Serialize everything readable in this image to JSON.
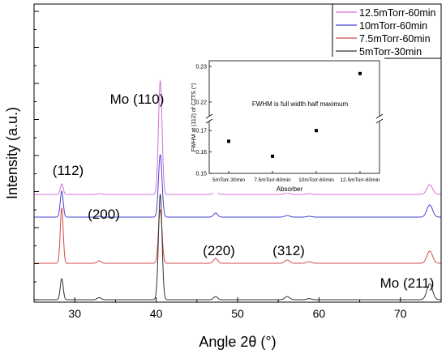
{
  "chart_data": [
    {
      "type": "line",
      "xlabel": "Angle 2θ (°)",
      "ylabel": "Intensity (a.u.)",
      "xlim": [
        25,
        75
      ],
      "xticks": [
        "30",
        "40",
        "50",
        "60",
        "70"
      ],
      "y_ticks_labeled": false,
      "legend_position": "top-right",
      "peak_annotations": [
        {
          "label": "(112)",
          "x": 28.4
        },
        {
          "label": "Mo (110)",
          "x": 40.5
        },
        {
          "label": "(200)",
          "x": 33.0
        },
        {
          "label": "(220)",
          "x": 47.3
        },
        {
          "label": "(312)",
          "x": 56.1
        },
        {
          "label": "Mo (211)",
          "x": 73.6
        }
      ],
      "peak_positions": [
        28.4,
        33.0,
        40.5,
        47.3,
        56.1,
        58.8,
        73.6
      ],
      "series": [
        {
          "name": "12.5mTorr-60min",
          "color": "#d56fd8",
          "offset": 3,
          "peak_heights": [
            0.13,
            0.01,
            1.4,
            0.04,
            0.02,
            0.01,
            0.12
          ]
        },
        {
          "name": "10mTorr-60min",
          "color": "#4646d2",
          "offset": 2,
          "peak_heights": [
            0.32,
            0.01,
            0.77,
            0.05,
            0.02,
            0.01,
            0.15
          ]
        },
        {
          "name": "7.5mTorr-60min",
          "color": "#d44a4a",
          "offset": 1,
          "peak_heights": [
            0.68,
            0.03,
            0.66,
            0.06,
            0.04,
            0.02,
            0.15
          ]
        },
        {
          "name": "5mTorr-30min",
          "color": "#333333",
          "offset": 0,
          "peak_heights": [
            0.2,
            0.02,
            1.0,
            0.03,
            0.03,
            0.01,
            0.15
          ]
        }
      ]
    },
    {
      "type": "scatter",
      "xlabel": "Absorber",
      "ylabel": "FWHM at (112) of CZTS (°)",
      "categories": [
        "5mTorr-30min",
        "7.5mTorr-60min",
        "10mTorr-60min",
        "12.5mTorr-60min"
      ],
      "values": [
        0.165,
        0.158,
        0.17,
        0.228
      ],
      "yticks": [
        "0.15",
        "0.16",
        "0.17",
        "0.22",
        "0.23"
      ],
      "axis_break": [
        0.175,
        0.215
      ],
      "annotation": "FWHM is full width half maximum"
    }
  ]
}
